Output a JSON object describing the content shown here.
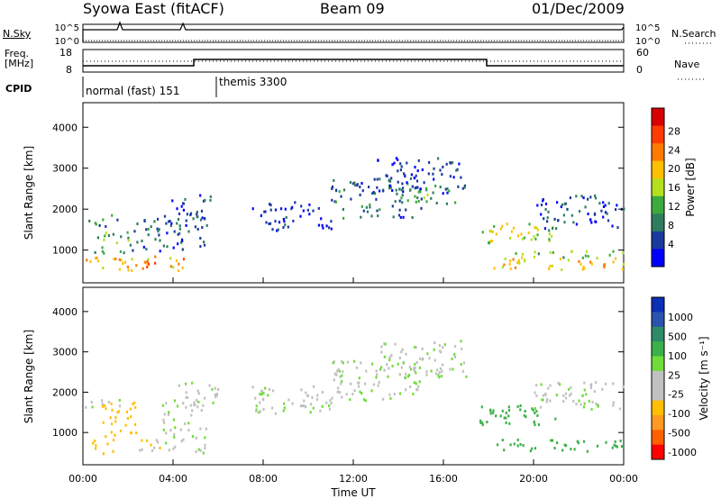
{
  "header": {
    "title": "Syowa East (fitACF)",
    "beam": "Beam 09",
    "date": "01/Dec/2009"
  },
  "top_panels": {
    "nsky_label": "N.Sky",
    "nsearch_label": "N.Search",
    "nsky_ticks": [
      "10^5",
      "10^0"
    ],
    "nsearch_ticks": [
      "10^5",
      "10^0"
    ],
    "freq_label_1": "Freq.",
    "freq_label_2": "[MHz]",
    "freq_ticks": [
      "18",
      "8"
    ],
    "nave_label": "Nave",
    "nave_ticks": [
      "60",
      "0"
    ],
    "cpid_label": "CPID",
    "cpid_1": "normal (fast) 151",
    "cpid_2": "themis 3300"
  },
  "colors": {
    "power": [
      "#0000ff",
      "#1a3a9e",
      "#2e7d5e",
      "#3daa3d",
      "#b4e01e",
      "#ffc000",
      "#ff7a00",
      "#ff3c00",
      "#d80000"
    ],
    "velocity": [
      "#ff0000",
      "#ff6000",
      "#ff9a20",
      "#ffbf00",
      "#c0c0c0",
      "#c0c0c0",
      "#6fdc3c",
      "#3cb04a",
      "#2f8a68",
      "#2a53ad",
      "#0b2fb5"
    ]
  },
  "chart_data": [
    {
      "type": "heatmap",
      "name": "power-panel",
      "xlabel": "",
      "ylabel": "Slant Range [km]",
      "y_ticks": [
        "1000",
        "2000",
        "3000",
        "4000"
      ],
      "ylim": [
        200,
        4600
      ],
      "xlim": [
        0,
        24
      ],
      "colorbar_label": "Power [dB]",
      "colorbar_ticks": [
        "4",
        "8",
        "12",
        "16",
        "20",
        "24",
        "28"
      ],
      "regions": [
        {
          "t0": 0.0,
          "t1": 4.7,
          "r0": 500,
          "r1": 900,
          "val": 24
        },
        {
          "t0": 0.5,
          "t1": 2.0,
          "r0": 900,
          "r1": 1500,
          "val": 14
        },
        {
          "t0": 0.0,
          "t1": 1.6,
          "r0": 1600,
          "r1": 1900,
          "val": 10
        },
        {
          "t0": 2.0,
          "t1": 5.5,
          "r0": 1000,
          "r1": 1800,
          "val": 8
        },
        {
          "t0": 3.5,
          "t1": 5.8,
          "r0": 1600,
          "r1": 2400,
          "val": 6
        },
        {
          "t0": 7.5,
          "t1": 11.0,
          "r0": 1500,
          "r1": 2200,
          "val": 4
        },
        {
          "t0": 11.0,
          "t1": 15.0,
          "r0": 1800,
          "r1": 2800,
          "val": 8
        },
        {
          "t0": 13.0,
          "t1": 17.0,
          "r0": 2400,
          "r1": 3300,
          "val": 5
        },
        {
          "t0": 14.0,
          "t1": 16.5,
          "r0": 2100,
          "r1": 2600,
          "val": 12
        },
        {
          "t0": 17.5,
          "t1": 21.0,
          "r0": 1200,
          "r1": 1700,
          "val": 18
        },
        {
          "t0": 18.0,
          "t1": 24.0,
          "r0": 550,
          "r1": 850,
          "val": 22
        },
        {
          "t0": 19.0,
          "t1": 24.0,
          "r0": 800,
          "r1": 1000,
          "val": 14
        },
        {
          "t0": 20.0,
          "t1": 24.0,
          "r0": 1500,
          "r1": 2400,
          "val": 6
        }
      ]
    },
    {
      "type": "heatmap",
      "name": "velocity-panel",
      "xlabel": "Time UT",
      "ylabel": "Slant Range [km]",
      "y_ticks": [
        "1000",
        "2000",
        "3000",
        "4000"
      ],
      "x_ticks": [
        "00:00",
        "04:00",
        "08:00",
        "12:00",
        "16:00",
        "20:00",
        "00:00"
      ],
      "ylim": [
        200,
        4600
      ],
      "xlim": [
        0,
        24
      ],
      "colorbar_label": "Velocity [m s⁻¹]",
      "colorbar_ticks": [
        "1000",
        "500",
        "100",
        "25",
        "-25",
        "-100",
        "-500",
        "-1000"
      ],
      "regions": [
        {
          "t0": 0.0,
          "t1": 1.5,
          "r0": 500,
          "r1": 900,
          "val": -300
        },
        {
          "t0": 0.8,
          "t1": 2.4,
          "r0": 900,
          "r1": 1800,
          "val": -400
        },
        {
          "t0": 2.0,
          "t1": 3.5,
          "r0": 500,
          "r1": 900,
          "val": -80
        },
        {
          "t0": 3.5,
          "t1": 5.5,
          "r0": 500,
          "r1": 1800,
          "val": 0
        },
        {
          "t0": 0.0,
          "t1": 1.6,
          "r0": 1600,
          "r1": 1900,
          "val": 0
        },
        {
          "t0": 4.0,
          "t1": 6.0,
          "r0": 1700,
          "r1": 2300,
          "val": 0
        },
        {
          "t0": 7.5,
          "t1": 11.0,
          "r0": 1500,
          "r1": 2200,
          "val": 0
        },
        {
          "t0": 11.0,
          "t1": 15.0,
          "r0": 1800,
          "r1": 2800,
          "val": 0
        },
        {
          "t0": 13.0,
          "t1": 17.0,
          "r0": 2400,
          "r1": 3300,
          "val": 0
        },
        {
          "t0": 17.5,
          "t1": 21.0,
          "r0": 1200,
          "r1": 1700,
          "val": 300
        },
        {
          "t0": 18.0,
          "t1": 24.0,
          "r0": 550,
          "r1": 850,
          "val": 200
        },
        {
          "t0": 20.0,
          "t1": 24.0,
          "r0": 1600,
          "r1": 2300,
          "val": 0
        }
      ]
    }
  ]
}
